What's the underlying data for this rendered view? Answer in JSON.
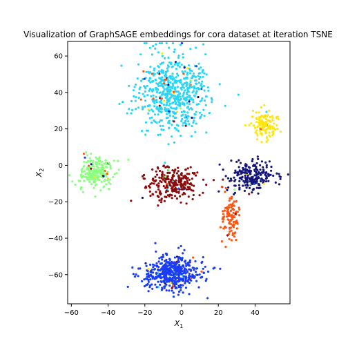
{
  "chart_data": {
    "type": "scatter",
    "title": "Visualization of GraphSAGE embeddings for cora dataset at iteration TSNE",
    "xlabel_main": "X",
    "xlabel_sub": "1",
    "ylabel_main": "X",
    "ylabel_sub": "2",
    "xlim": [
      -62,
      59
    ],
    "ylim": [
      -76,
      68
    ],
    "xticks": [
      -60,
      -40,
      -20,
      0,
      20,
      40
    ],
    "yticks": [
      -60,
      -40,
      -20,
      0,
      20,
      40,
      60
    ],
    "grid": false,
    "legend": "none",
    "clusters": [
      {
        "name": "cluster-cyan",
        "color": "#26d7f7",
        "center": [
          -4,
          40
        ],
        "spread": [
          10,
          10
        ],
        "count": 620
      },
      {
        "name": "cluster-green",
        "color": "#8cff80",
        "center": [
          -46,
          -4
        ],
        "spread": [
          5.5,
          5
        ],
        "count": 220
      },
      {
        "name": "cluster-darkred",
        "color": "#8b0a0a",
        "center": [
          -5,
          -10
        ],
        "spread": [
          7,
          4.5
        ],
        "count": 260
      },
      {
        "name": "cluster-navy",
        "color": "#14147a",
        "center": [
          38,
          -6
        ],
        "spread": [
          6,
          4.5
        ],
        "count": 220
      },
      {
        "name": "cluster-yellow",
        "color": "#ffe612",
        "center": [
          45,
          22
        ],
        "spread": [
          3.5,
          4
        ],
        "count": 130
      },
      {
        "name": "cluster-orange",
        "color": "#ff5512",
        "center": [
          27,
          -29
        ],
        "spread": [
          2.5,
          6
        ],
        "count": 110
      },
      {
        "name": "cluster-blue",
        "color": "#1a3cf5",
        "center": [
          -5,
          -59
        ],
        "spread": [
          8,
          4.5
        ],
        "count": 500
      }
    ]
  }
}
